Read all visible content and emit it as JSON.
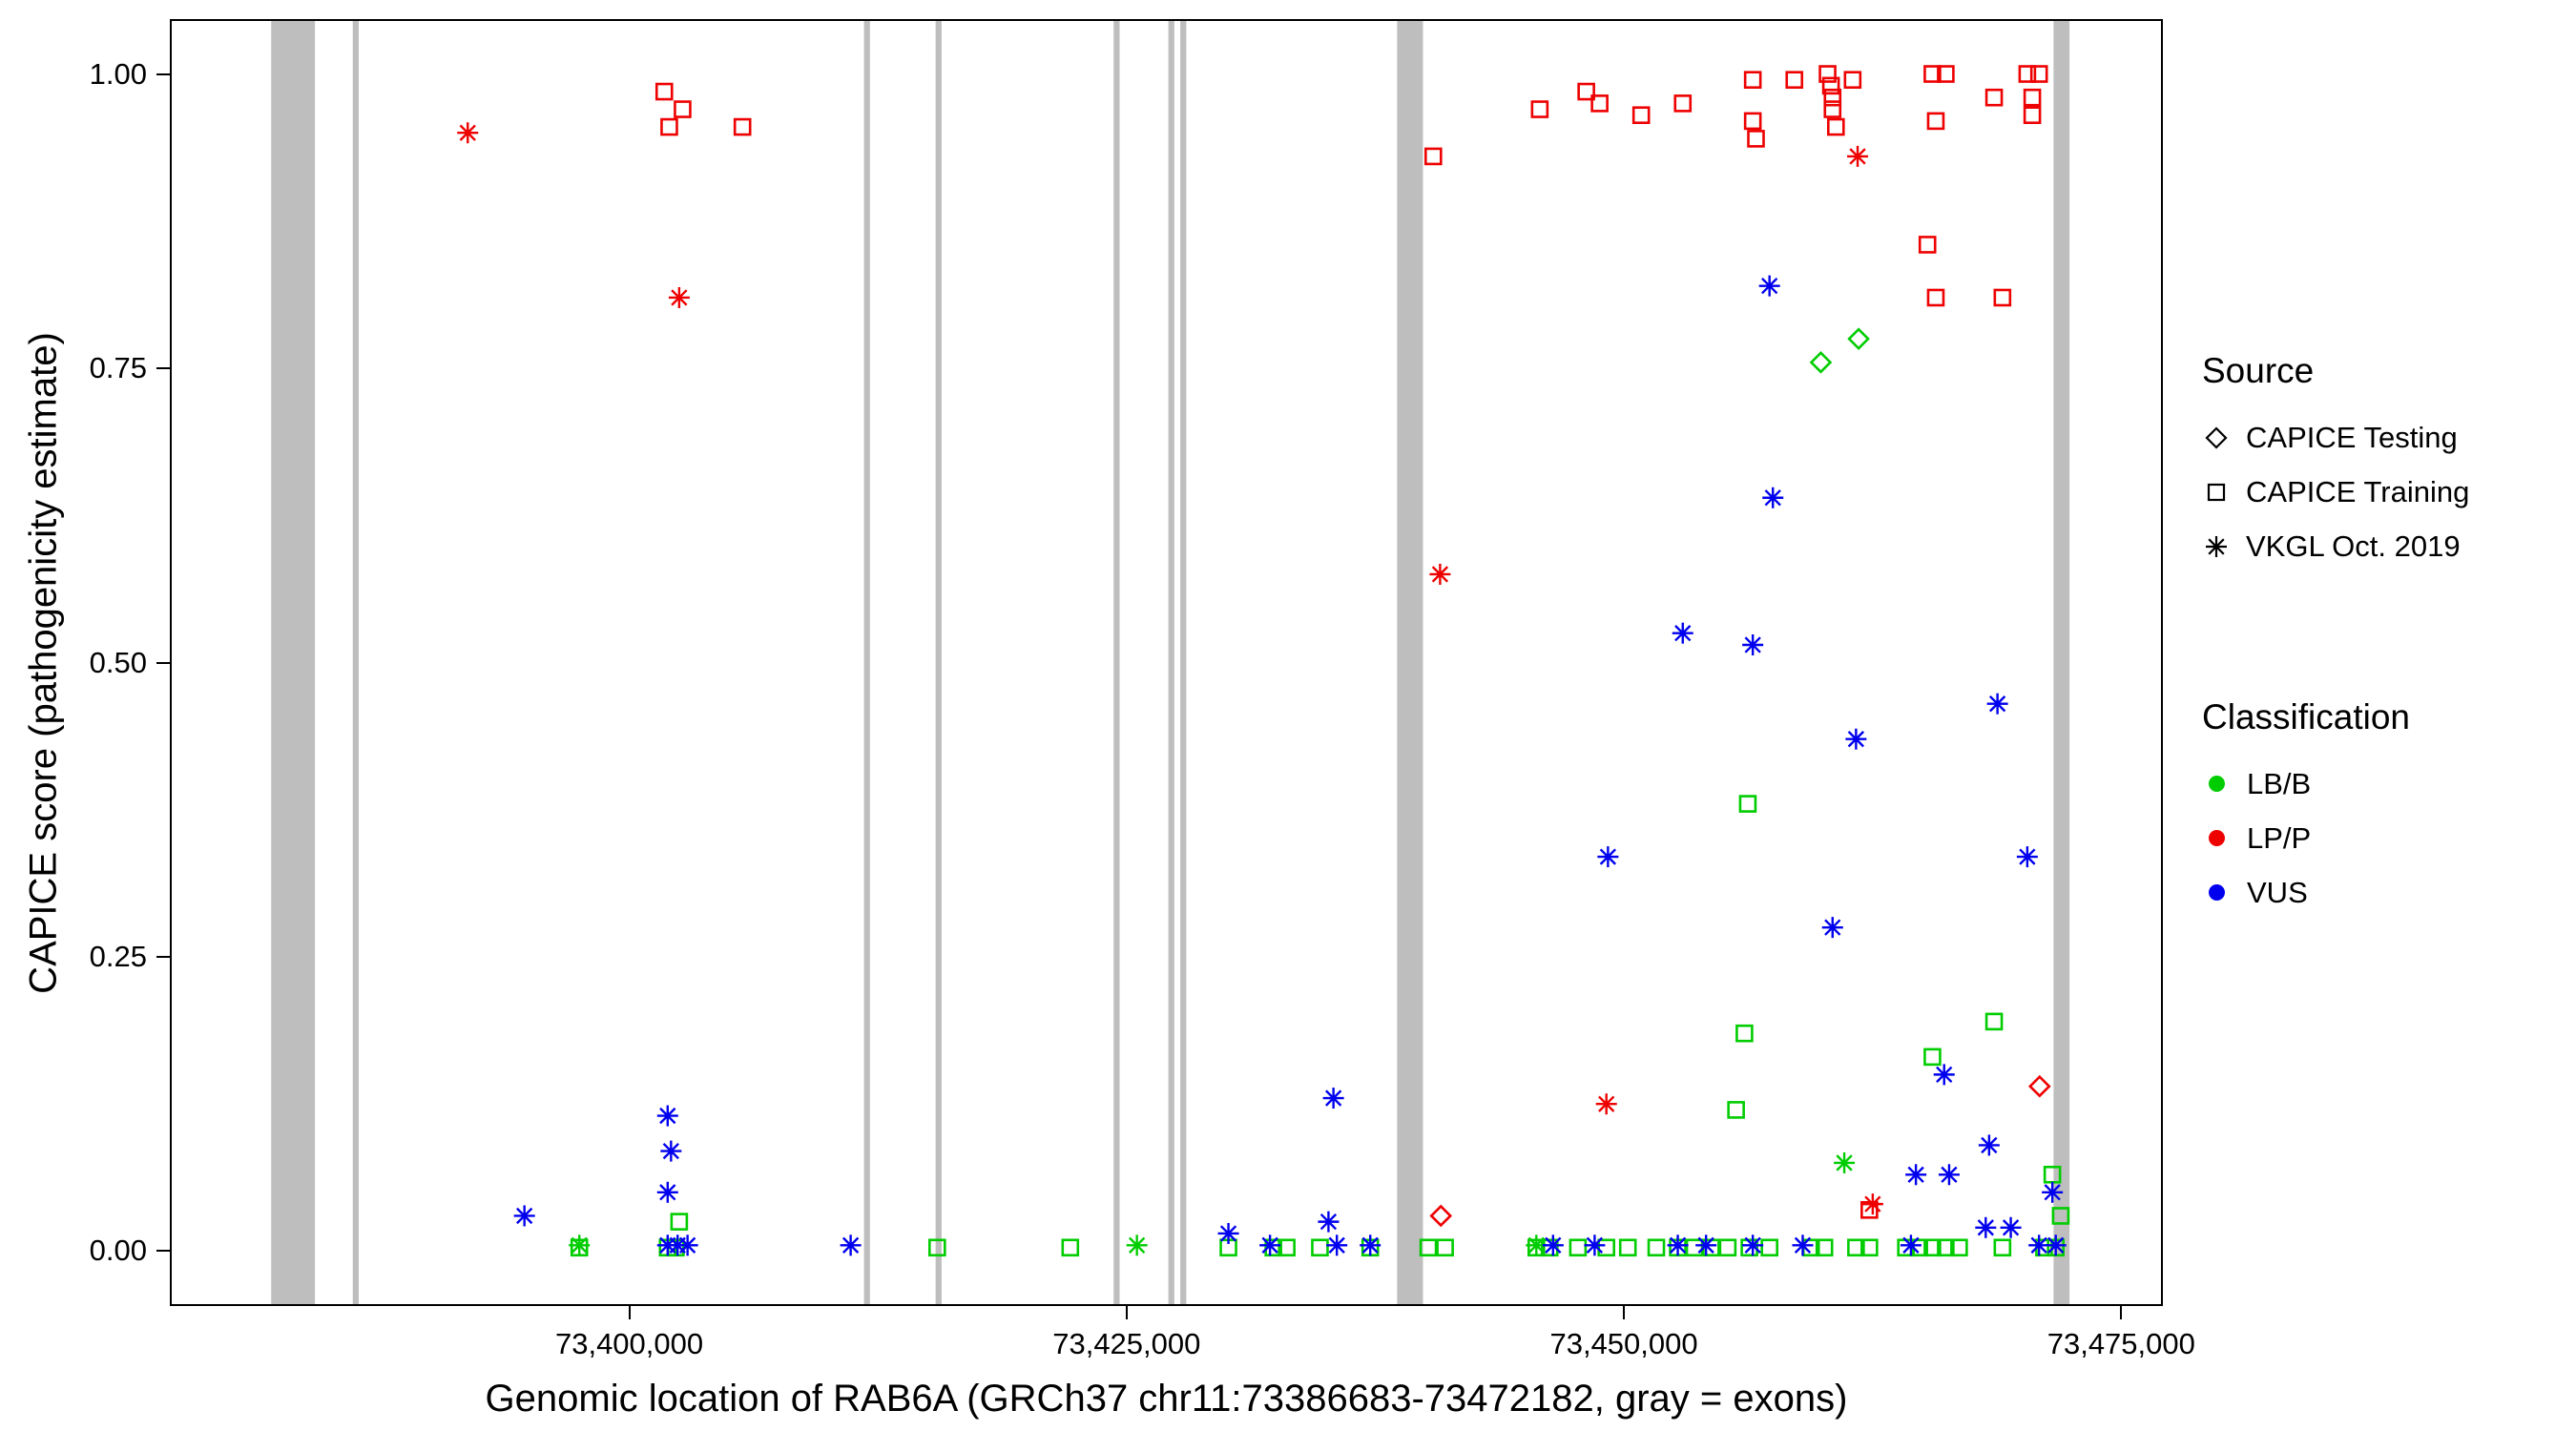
{
  "legend": {
    "source": {
      "title": "Source",
      "items": [
        {
          "label": "CAPICE Testing",
          "marker": "diamond"
        },
        {
          "label": "CAPICE Training",
          "marker": "square"
        },
        {
          "label": "VKGL Oct. 2019",
          "marker": "asterisk"
        }
      ]
    },
    "classification": {
      "title": "Classification",
      "items": [
        {
          "label": "LB/B",
          "color": "#00CD00"
        },
        {
          "label": "LP/P",
          "color": "#EE0000"
        },
        {
          "label": "VUS",
          "color": "#0000EE"
        }
      ]
    }
  },
  "chart_data": {
    "type": "scatter",
    "title": "",
    "xlabel": "Genomic location of RAB6A (GRCh37 chr11:73386683-73472182, gray = exons)",
    "ylabel": "CAPICE score (pathogenicity estimate)",
    "x_domain": [
      73377000,
      73477000
    ],
    "y_domain": [
      -0.045,
      1.045
    ],
    "x_ticks": [
      {
        "value": 73400000,
        "label": "73,400,000"
      },
      {
        "value": 73425000,
        "label": "73,425,000"
      },
      {
        "value": 73450000,
        "label": "73,450,000"
      },
      {
        "value": 73475000,
        "label": "73,475,000"
      }
    ],
    "y_ticks": [
      {
        "value": 0,
        "label": "0.00"
      },
      {
        "value": 0.25,
        "label": "0.25"
      },
      {
        "value": 0.5,
        "label": "0.50"
      },
      {
        "value": 0.75,
        "label": "0.75"
      },
      {
        "value": 1,
        "label": "1.00"
      }
    ],
    "exon_color": "#BEBEBE",
    "exons": [
      [
        73382000,
        73384200
      ],
      [
        73386100,
        73386400
      ],
      [
        73411800,
        73412100
      ],
      [
        73415400,
        73415700
      ],
      [
        73424350,
        73424650
      ],
      [
        73427100,
        73427400
      ],
      [
        73427700,
        73428000
      ],
      [
        73438600,
        73439900
      ],
      [
        73471600,
        73472400
      ]
    ],
    "series": [
      {
        "name": "CAPICE Testing - LB/B",
        "source": "CAPICE Testing",
        "classification": "LB/B",
        "marker": "diamond",
        "color": "#00CD00",
        "points": [
          [
            73459900,
            0.755
          ],
          [
            73461800,
            0.775
          ]
        ]
      },
      {
        "name": "CAPICE Testing - LP/P",
        "source": "CAPICE Testing",
        "classification": "LP/P",
        "marker": "diamond",
        "color": "#EE0000",
        "points": [
          [
            73440800,
            0.03
          ],
          [
            73470900,
            0.14
          ]
        ]
      },
      {
        "name": "CAPICE Training - LB/B",
        "source": "CAPICE Training",
        "classification": "LB/B",
        "marker": "square",
        "color": "#00CD00",
        "points": [
          [
            73456230,
            0.38
          ],
          [
            73456060,
            0.185
          ],
          [
            73455640,
            0.12
          ],
          [
            73468610,
            0.195
          ],
          [
            73465510,
            0.165
          ],
          [
            73471540,
            0.065
          ],
          [
            73402510,
            0.025
          ],
          [
            73471960,
            0.03
          ],
          [
            73397490,
            0.003
          ],
          [
            73401930,
            0.003
          ],
          [
            73402340,
            0.003
          ],
          [
            73415480,
            0.003
          ],
          [
            73422170,
            0.003
          ],
          [
            73430120,
            0.003
          ],
          [
            73432380,
            0.003
          ],
          [
            73433050,
            0.003
          ],
          [
            73434720,
            0.003
          ],
          [
            73437250,
            0.003
          ],
          [
            73440170,
            0.003
          ],
          [
            73441010,
            0.003
          ],
          [
            73445600,
            0.003
          ],
          [
            73446270,
            0.003
          ],
          [
            73447690,
            0.003
          ],
          [
            73449120,
            0.003
          ],
          [
            73450200,
            0.003
          ],
          [
            73451630,
            0.003
          ],
          [
            73452710,
            0.003
          ],
          [
            73453550,
            0.003
          ],
          [
            73454380,
            0.003
          ],
          [
            73455220,
            0.003
          ],
          [
            73456310,
            0.003
          ],
          [
            73457320,
            0.003
          ],
          [
            73459410,
            0.003
          ],
          [
            73460080,
            0.003
          ],
          [
            73461670,
            0.003
          ],
          [
            73462340,
            0.003
          ],
          [
            73464180,
            0.003
          ],
          [
            73464850,
            0.003
          ],
          [
            73465510,
            0.003
          ],
          [
            73466180,
            0.003
          ],
          [
            73466850,
            0.003
          ],
          [
            73469030,
            0.003
          ],
          [
            73471120,
            0.003
          ],
          [
            73471710,
            0.003
          ]
        ]
      },
      {
        "name": "CAPICE Training - LP/P",
        "source": "CAPICE Training",
        "classification": "LP/P",
        "marker": "square",
        "color": "#EE0000",
        "points": [
          [
            73401760,
            0.985
          ],
          [
            73402680,
            0.97
          ],
          [
            73402010,
            0.955
          ],
          [
            73405690,
            0.955
          ],
          [
            73440420,
            0.93
          ],
          [
            73445770,
            0.97
          ],
          [
            73448110,
            0.985
          ],
          [
            73448780,
            0.975
          ],
          [
            73450870,
            0.965
          ],
          [
            73452960,
            0.975
          ],
          [
            73456480,
            0.995
          ],
          [
            73456480,
            0.96
          ],
          [
            73456640,
            0.945
          ],
          [
            73458570,
            0.995
          ],
          [
            73460240,
            1.0
          ],
          [
            73460410,
            0.99
          ],
          [
            73460490,
            0.98
          ],
          [
            73460490,
            0.97
          ],
          [
            73460660,
            0.955
          ],
          [
            73461500,
            0.995
          ],
          [
            73465510,
            1.0
          ],
          [
            73466180,
            1.0
          ],
          [
            73465680,
            0.96
          ],
          [
            73465260,
            0.855
          ],
          [
            73465680,
            0.81
          ],
          [
            73468610,
            0.98
          ],
          [
            73469030,
            0.81
          ],
          [
            73470280,
            1.0
          ],
          [
            73470870,
            1.0
          ],
          [
            73470530,
            0.98
          ],
          [
            73470530,
            0.965
          ],
          [
            73462340,
            0.035
          ]
        ]
      },
      {
        "name": "VKGL Oct. 2019 - LB/B",
        "source": "VKGL Oct. 2019",
        "classification": "LB/B",
        "marker": "asterisk",
        "color": "#00CD00",
        "points": [
          [
            73397490,
            0.005
          ],
          [
            73425520,
            0.005
          ],
          [
            73445600,
            0.005
          ],
          [
            73461080,
            0.075
          ]
        ]
      },
      {
        "name": "VKGL Oct. 2019 - LP/P",
        "source": "VKGL Oct. 2019",
        "classification": "LP/P",
        "marker": "asterisk",
        "color": "#EE0000",
        "points": [
          [
            73391880,
            0.95
          ],
          [
            73402510,
            0.81
          ],
          [
            73440760,
            0.575
          ],
          [
            73461750,
            0.93
          ],
          [
            73449120,
            0.125
          ],
          [
            73462510,
            0.04
          ]
        ]
      },
      {
        "name": "VKGL Oct. 2019 - VUS",
        "source": "VKGL Oct. 2019",
        "classification": "VUS",
        "marker": "asterisk",
        "color": "#0000EE",
        "points": [
          [
            73457320,
            0.82
          ],
          [
            73457490,
            0.64
          ],
          [
            73452960,
            0.525
          ],
          [
            73456480,
            0.515
          ],
          [
            73468780,
            0.465
          ],
          [
            73461670,
            0.435
          ],
          [
            73449200,
            0.335
          ],
          [
            73470280,
            0.335
          ],
          [
            73460490,
            0.275
          ],
          [
            73435400,
            0.13
          ],
          [
            73401930,
            0.115
          ],
          [
            73402100,
            0.085
          ],
          [
            73468360,
            0.09
          ],
          [
            73466100,
            0.15
          ],
          [
            73464680,
            0.065
          ],
          [
            73466350,
            0.065
          ],
          [
            73394730,
            0.03
          ],
          [
            73401930,
            0.05
          ],
          [
            73471540,
            0.05
          ],
          [
            73469450,
            0.02
          ],
          [
            73435150,
            0.025
          ],
          [
            73430120,
            0.015
          ],
          [
            73401930,
            0.005
          ],
          [
            73402430,
            0.005
          ],
          [
            73402930,
            0.005
          ],
          [
            73411130,
            0.005
          ],
          [
            73432210,
            0.005
          ],
          [
            73435570,
            0.005
          ],
          [
            73437250,
            0.005
          ],
          [
            73446440,
            0.005
          ],
          [
            73448530,
            0.005
          ],
          [
            73452710,
            0.005
          ],
          [
            73454130,
            0.005
          ],
          [
            73456480,
            0.005
          ],
          [
            73458990,
            0.005
          ],
          [
            73464430,
            0.005
          ],
          [
            73468190,
            0.02
          ],
          [
            73470870,
            0.005
          ],
          [
            73471710,
            0.005
          ]
        ]
      }
    ]
  }
}
